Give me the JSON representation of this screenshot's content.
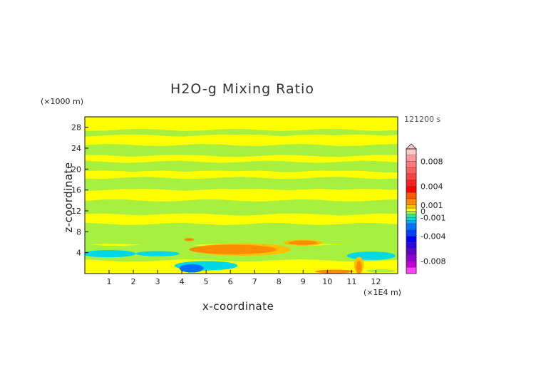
{
  "chart_data": {
    "type": "heatmap",
    "title": "H2O-g Mixing Ratio",
    "xlabel": "x-coordinate",
    "ylabel": "z-coordinate",
    "x_unit_label": "(×1E4 m)",
    "y_unit_label": "(×1000 m)",
    "time_label": "121200 s",
    "xlim": [
      0,
      12.9
    ],
    "ylim": [
      0,
      30
    ],
    "x_ticks": [
      1,
      2,
      3,
      4,
      5,
      6,
      7,
      8,
      9,
      10,
      11,
      12
    ],
    "y_ticks": [
      4,
      8,
      12,
      16,
      20,
      24,
      28
    ],
    "field_bands": [
      {
        "y0": 27.5,
        "y1": 30,
        "value": 0.0004
      },
      {
        "y0": 26.4,
        "y1": 27.5,
        "value": -0.0004
      },
      {
        "y0": 24.6,
        "y1": 26.4,
        "value": 0.0004
      },
      {
        "y0": 22.5,
        "y1": 24.6,
        "value": -0.0004
      },
      {
        "y0": 21.4,
        "y1": 22.5,
        "value": 0.0004
      },
      {
        "y0": 19.5,
        "y1": 21.4,
        "value": -0.0004
      },
      {
        "y0": 18.3,
        "y1": 19.5,
        "value": 0.0004
      },
      {
        "y0": 16.0,
        "y1": 18.3,
        "value": -0.0004
      },
      {
        "y0": 14.0,
        "y1": 16.0,
        "value": 0.0004
      },
      {
        "y0": 11.3,
        "y1": 14.0,
        "value": -0.0004
      },
      {
        "y0": 9.5,
        "y1": 11.3,
        "value": 0.0004
      },
      {
        "y0": 5.5,
        "y1": 9.5,
        "value": -0.0004
      },
      {
        "y0": 2.5,
        "y1": 5.5,
        "value": -0.0004
      }
    ],
    "field_blobs": [
      {
        "x": 6.5,
        "y": 4.6,
        "rx": 2.0,
        "ry": 1.2,
        "value": 0.0007
      },
      {
        "x": 6.1,
        "y": 4.6,
        "rx": 1.8,
        "ry": 0.9,
        "value": 0.0015
      },
      {
        "x": 9.0,
        "y": 5.9,
        "rx": 0.8,
        "ry": 0.6,
        "value": 0.0007
      },
      {
        "x": 9.0,
        "y": 5.9,
        "rx": 0.6,
        "ry": 0.4,
        "value": 0.0015
      },
      {
        "x": 4.3,
        "y": 6.5,
        "rx": 0.2,
        "ry": 0.3,
        "value": 0.0015
      },
      {
        "x": 1.0,
        "y": 3.8,
        "rx": 1.1,
        "ry": 0.7,
        "value": -0.0012
      },
      {
        "x": 3.0,
        "y": 3.8,
        "rx": 0.9,
        "ry": 0.5,
        "value": -0.0012
      },
      {
        "x": 5.0,
        "y": 1.5,
        "rx": 1.3,
        "ry": 0.9,
        "value": -0.0012
      },
      {
        "x": 4.4,
        "y": 1.0,
        "rx": 0.5,
        "ry": 0.8,
        "value": -0.0025
      },
      {
        "x": 11.8,
        "y": 3.4,
        "rx": 1.0,
        "ry": 0.8,
        "value": -0.0012
      },
      {
        "x": 11.3,
        "y": 1.6,
        "rx": 0.2,
        "ry": 1.6,
        "value": 0.0007
      },
      {
        "x": 11.3,
        "y": 1.2,
        "rx": 0.12,
        "ry": 1.2,
        "value": 0.0015
      },
      {
        "x": 10.3,
        "y": 0.4,
        "rx": 0.8,
        "ry": 0.35,
        "value": 0.0015
      },
      {
        "x": 12.2,
        "y": 0.5,
        "rx": 0.6,
        "ry": 0.3,
        "value": -0.0004
      }
    ],
    "colorbar": {
      "tick_labels": [
        "0.008",
        "0.004",
        "0.001",
        "0",
        "-0.001",
        "-0.004",
        "-0.008"
      ],
      "tick_values": [
        0.008,
        0.004,
        0.001,
        0,
        -0.001,
        -0.004,
        -0.008
      ],
      "levels": [
        {
          "min": 0.009,
          "max": 0.01,
          "color": "#ffc8c8"
        },
        {
          "min": 0.008,
          "max": 0.009,
          "color": "#ff9a9a"
        },
        {
          "min": 0.007,
          "max": 0.008,
          "color": "#ff7a7a"
        },
        {
          "min": 0.006,
          "max": 0.007,
          "color": "#ff5f5f"
        },
        {
          "min": 0.005,
          "max": 0.006,
          "color": "#ff4040"
        },
        {
          "min": 0.004,
          "max": 0.005,
          "color": "#ff2020"
        },
        {
          "min": 0.003,
          "max": 0.004,
          "color": "#ff0000"
        },
        {
          "min": 0.002,
          "max": 0.003,
          "color": "#ff5a00"
        },
        {
          "min": 0.001,
          "max": 0.002,
          "color": "#ff8c00"
        },
        {
          "min": 0.0005,
          "max": 0.001,
          "color": "#ffc000"
        },
        {
          "min": 0,
          "max": 0.0005,
          "color": "#ffff00"
        },
        {
          "min": -0.0005,
          "max": 0,
          "color": "#a8f040"
        },
        {
          "min": -0.001,
          "max": -0.0005,
          "color": "#28e890"
        },
        {
          "min": -0.0015,
          "max": -0.001,
          "color": "#00d8e8"
        },
        {
          "min": -0.002,
          "max": -0.0015,
          "color": "#00a8ff"
        },
        {
          "min": -0.003,
          "max": -0.002,
          "color": "#0070ff"
        },
        {
          "min": -0.004,
          "max": -0.003,
          "color": "#0040ff"
        },
        {
          "min": -0.005,
          "max": -0.004,
          "color": "#0000ff"
        },
        {
          "min": -0.006,
          "max": -0.005,
          "color": "#3000e0"
        },
        {
          "min": -0.007,
          "max": -0.006,
          "color": "#6000d0"
        },
        {
          "min": -0.008,
          "max": -0.007,
          "color": "#9000d0"
        },
        {
          "min": -0.009,
          "max": -0.008,
          "color": "#c000d8"
        },
        {
          "min": -0.01,
          "max": -0.009,
          "color": "#ff40ff"
        }
      ]
    }
  }
}
